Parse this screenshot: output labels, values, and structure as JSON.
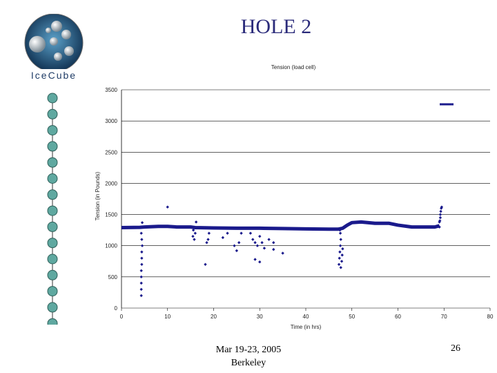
{
  "slide": {
    "title": "HOLE 2",
    "footer_line1": "Mar 19-23, 2005",
    "footer_line2": "Berkeley",
    "page_number": "26"
  },
  "logo": {
    "text": "IceCube"
  },
  "icons": {
    "logo": "icecube-logo-icon",
    "string": "dom-string-icon"
  },
  "colors": {
    "series": "#1a1a8c",
    "title": "#2a2a7a",
    "dom": "#5fa8a0"
  },
  "chart_data": {
    "type": "scatter",
    "title": "Tension (load cell)",
    "xlabel": "Time (in hrs)",
    "ylabel": "Tension (in Pounds)",
    "xlim": [
      0,
      80
    ],
    "ylim": [
      0,
      3500
    ],
    "xticks": [
      "0",
      "10",
      "20",
      "30",
      "40",
      "50",
      "60",
      "70",
      "80"
    ],
    "yticks": [
      "0",
      "500",
      "1000",
      "1500",
      "2000",
      "2500",
      "3000",
      "3500"
    ],
    "grid": "horizontal",
    "legend": "top-right",
    "series": [
      {
        "baseline": [
          [
            0,
            1290
          ],
          [
            4,
            1295
          ],
          [
            5,
            1300
          ],
          [
            8,
            1310
          ],
          [
            10,
            1310
          ],
          [
            12,
            1300
          ],
          [
            15,
            1300
          ],
          [
            16,
            1290
          ],
          [
            20,
            1285
          ],
          [
            25,
            1280
          ],
          [
            30,
            1280
          ],
          [
            35,
            1275
          ],
          [
            40,
            1270
          ],
          [
            45,
            1265
          ],
          [
            47,
            1265
          ],
          [
            48,
            1280
          ],
          [
            49,
            1330
          ],
          [
            50,
            1370
          ],
          [
            52,
            1380
          ],
          [
            55,
            1360
          ],
          [
            58,
            1360
          ],
          [
            60,
            1330
          ],
          [
            63,
            1300
          ],
          [
            66,
            1300
          ],
          [
            68,
            1300
          ],
          [
            69,
            1320
          ]
        ],
        "points": [
          [
            4.3,
            200
          ],
          [
            4.3,
            300
          ],
          [
            4.3,
            400
          ],
          [
            4.3,
            500
          ],
          [
            4.3,
            600
          ],
          [
            4.4,
            700
          ],
          [
            4.4,
            800
          ],
          [
            4.4,
            900
          ],
          [
            4.5,
            1000
          ],
          [
            4.4,
            1100
          ],
          [
            4.3,
            1200
          ],
          [
            4.5,
            1370
          ],
          [
            10,
            1620
          ],
          [
            15.5,
            1150
          ],
          [
            15.8,
            1100
          ],
          [
            16,
            1200
          ],
          [
            15.6,
            1250
          ],
          [
            16.2,
            1380
          ],
          [
            18.5,
            1050
          ],
          [
            18.8,
            1100
          ],
          [
            19,
            1200
          ],
          [
            18.2,
            700
          ],
          [
            22,
            1130
          ],
          [
            23,
            1200
          ],
          [
            24.5,
            1000
          ],
          [
            25,
            920
          ],
          [
            25.5,
            1050
          ],
          [
            26,
            1200
          ],
          [
            28,
            1200
          ],
          [
            28.5,
            1100
          ],
          [
            29,
            1050
          ],
          [
            29.5,
            1000
          ],
          [
            30,
            1150
          ],
          [
            30.5,
            1050
          ],
          [
            31,
            960
          ],
          [
            32,
            1100
          ],
          [
            33,
            1050
          ],
          [
            29,
            780
          ],
          [
            30,
            740
          ],
          [
            33,
            940
          ],
          [
            35,
            880
          ],
          [
            47.2,
            700
          ],
          [
            47.3,
            800
          ],
          [
            47.4,
            900
          ],
          [
            47.5,
            1000
          ],
          [
            47.6,
            1100
          ],
          [
            47.5,
            1200
          ],
          [
            47.8,
            750
          ],
          [
            47.9,
            850
          ],
          [
            48,
            950
          ],
          [
            47.6,
            650
          ],
          [
            47.4,
            1250
          ],
          [
            69,
            1300
          ],
          [
            69.1,
            1400
          ],
          [
            69.2,
            1500
          ],
          [
            69.3,
            1550
          ],
          [
            69.4,
            1600
          ],
          [
            69.5,
            1620
          ],
          [
            69.2,
            1450
          ],
          [
            69.0,
            1380
          ]
        ],
        "legend_marker": true
      }
    ]
  }
}
